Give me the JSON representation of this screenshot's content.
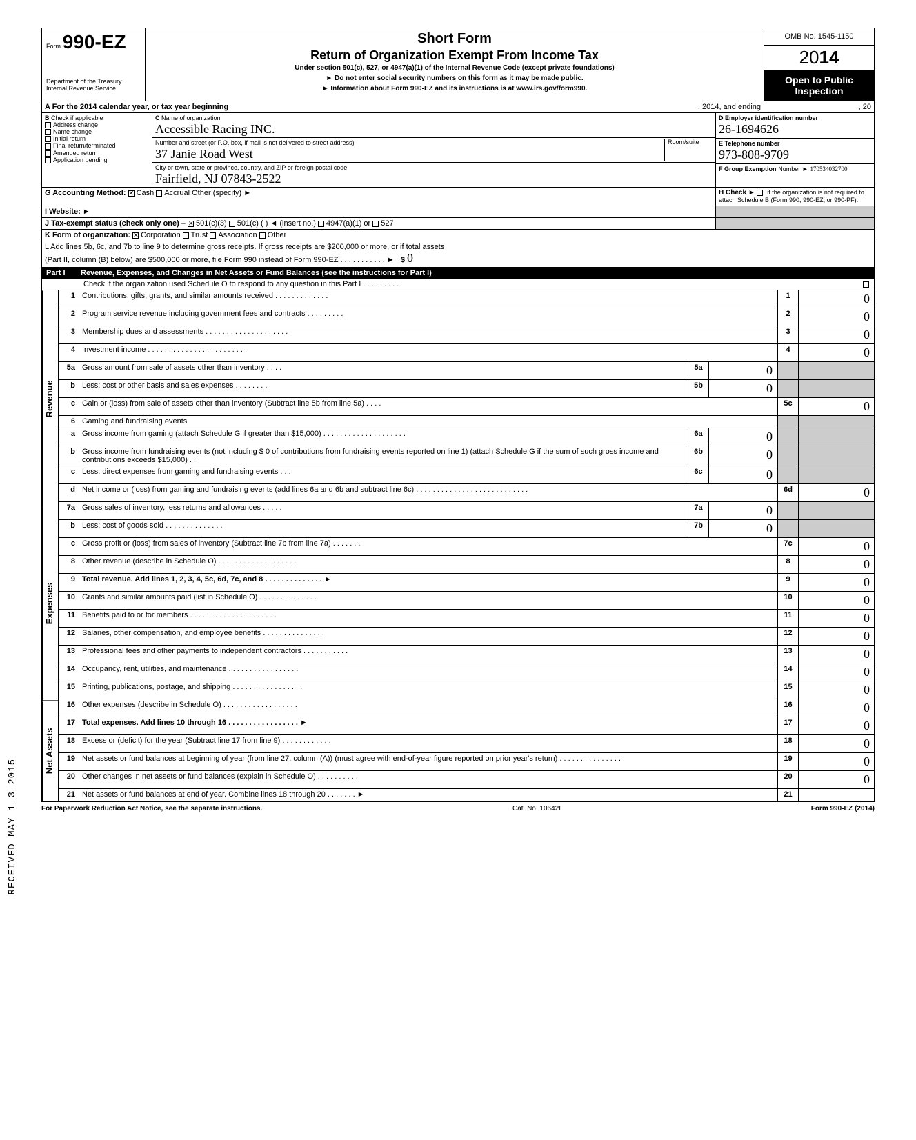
{
  "header": {
    "form_prefix": "Form",
    "form_number": "990-EZ",
    "short_form": "Short Form",
    "title": "Return of Organization Exempt From Income Tax",
    "under_section": "Under section 501(c), 527, or 4947(a)(1) of the Internal Revenue Code (except private foundations)",
    "do_not_enter": "► Do not enter social security numbers on this form as it may be made public.",
    "info_about": "► Information about Form 990-EZ and its instructions is at www.irs.gov/form990.",
    "department": "Department of the Treasury",
    "irs": "Internal Revenue Service",
    "omb": "OMB No. 1545-1150",
    "year_prefix": "20",
    "year_bold": "14",
    "open_public_1": "Open to Public",
    "open_public_2": "Inspection"
  },
  "section_a": {
    "label": "A For the 2014 calendar year, or tax year beginning",
    "ending": ", 2014, and ending",
    "end_suffix": ", 20"
  },
  "section_b": {
    "label": "B",
    "check_if": "Check if applicable",
    "items": [
      "Address change",
      "Name change",
      "Initial return",
      "Final return/terminated",
      "Amended return",
      "Application pending"
    ]
  },
  "section_c": {
    "label": "C",
    "name_label": "Name of organization",
    "name_value": "Accessible Racing INC.",
    "street_label": "Number and street (or P.O. box, if mail is not delivered to street address)",
    "room_label": "Room/suite",
    "street_value": "37 Janie Road West",
    "city_label": "City or town, state or province, country, and ZIP or foreign postal code",
    "city_value": "Fairfield, NJ  07843-2522"
  },
  "section_d": {
    "label": "D Employer identification number",
    "value": "26-1694626"
  },
  "section_e": {
    "label": "E Telephone number",
    "value": "973-808-9709"
  },
  "section_f": {
    "label": "F Group Exemption",
    "number_label": "Number ►",
    "value": "170534032700"
  },
  "section_g": {
    "label": "G Accounting Method:",
    "cash": "Cash",
    "accrual": "Accrual",
    "other": "Other (specify) ►"
  },
  "section_h": {
    "label": "H Check ►",
    "text": "if the organization is not required to attach Schedule B (Form 990, 990-EZ, or 990-PF)."
  },
  "section_i": {
    "label": "I  Website: ►"
  },
  "section_j": {
    "label": "J Tax-exempt status (check only one) –",
    "c3": "501(c)(3)",
    "c": "501(c) (",
    "insert": ") ◄ (insert no.)",
    "a1": "4947(a)(1) or",
    "s527": "527"
  },
  "section_k": {
    "label": "K Form of organization:",
    "corp": "Corporation",
    "trust": "Trust",
    "assoc": "Association",
    "other": "Other"
  },
  "section_l": {
    "line1": "L Add lines 5b, 6c, and 7b to line 9 to determine gross receipts. If gross receipts are $200,000 or more, or if total assets",
    "line2": "(Part II, column (B) below) are $500,000 or more, file Form 990 instead of Form 990-EZ .   .   .   .   .   .   .   .   .   .   .   ►",
    "dollar": "$",
    "value": "0"
  },
  "part1": {
    "label": "Part I",
    "title": "Revenue, Expenses, and Changes in Net Assets or Fund Balances (see the instructions for Part I)",
    "check": "Check if the organization used Schedule O to respond to any question in this Part I .   .   .   .   .   .   .   .   ."
  },
  "groups": {
    "revenue": "Revenue",
    "expenses": "Expenses",
    "net_assets": "Net Assets"
  },
  "lines": [
    {
      "n": "1",
      "t": "Contributions, gifts, grants, and similar amounts received .   .   .   .   .   .   .   .   .   .   .   .   .",
      "bn": "1",
      "v": "0"
    },
    {
      "n": "2",
      "t": "Program service revenue including government fees and contracts    .   .   .   .   .   .   .   .   .",
      "bn": "2",
      "v": "0"
    },
    {
      "n": "3",
      "t": "Membership dues and assessments .   .   .   .   .   .   .   .   .   .   .   .   .   .   .   .   .   .   .   .",
      "bn": "3",
      "v": "0"
    },
    {
      "n": "4",
      "t": "Investment income    .   .   .   .   .   .   .   .   .   .   .   .   .   .   .   .   .   .   .   .   .   .   .   .",
      "bn": "4",
      "v": "0"
    },
    {
      "n": "5a",
      "t": "Gross amount from sale of assets other than inventory    .   .   .   .",
      "mn": "5a",
      "mv": "0"
    },
    {
      "n": "b",
      "t": "Less: cost or other basis and sales expenses .   .   .   .   .   .   .   .",
      "mn": "5b",
      "mv": "0"
    },
    {
      "n": "c",
      "t": "Gain or (loss) from sale of assets other than inventory (Subtract line 5b from line 5a) .   .   .   .",
      "bn": "5c",
      "v": "0"
    },
    {
      "n": "6",
      "t": "Gaming and fundraising events"
    },
    {
      "n": "a",
      "t": "Gross income from gaming (attach Schedule G if greater than $15,000) .   .   .   .   .   .   .   .   .   .   .   .   .   .   .   .   .   .   .   .",
      "mn": "6a",
      "mv": "0"
    },
    {
      "n": "b",
      "t": "Gross income from fundraising events (not including  $    0               of contributions from fundraising events reported on line 1) (attach Schedule G if the sum of such gross income and contributions exceeds $15,000) .   .",
      "mn": "6b",
      "mv": "0"
    },
    {
      "n": "c",
      "t": "Less: direct expenses from gaming and fundraising events    .   .   .",
      "mn": "6c",
      "mv": "0"
    },
    {
      "n": "d",
      "t": "Net income or (loss) from gaming and fundraising events (add lines 6a and 6b and subtract line 6c)    .   .   .   .   .   .   .   .   .   .   .   .   .   .   .   .   .   .   .   .   .   .   .   .   .   .   .",
      "bn": "6d",
      "v": "0"
    },
    {
      "n": "7a",
      "t": "Gross sales of inventory, less returns and allowances   .   .   .   .   .",
      "mn": "7a",
      "mv": "0"
    },
    {
      "n": "b",
      "t": "Less: cost of goods sold   .   .   .   .   .   .   .   .   .   .   .   .   .   .",
      "mn": "7b",
      "mv": "0"
    },
    {
      "n": "c",
      "t": "Gross profit or (loss) from sales of inventory (Subtract line 7b from line 7a)   .   .   .   .   .   .   .",
      "bn": "7c",
      "v": "0"
    },
    {
      "n": "8",
      "t": "Other revenue (describe in Schedule O) .   .   .   .   .   .   .   .   .   .   .   .   .   .   .   .   .   .   .",
      "bn": "8",
      "v": "0"
    },
    {
      "n": "9",
      "t": "Total revenue. Add lines 1, 2, 3, 4, 5c, 6d, 7c, and 8    .   .   .   .   .   .   .   .   .   .   .   .   .   .   ►",
      "bn": "9",
      "v": "0",
      "bold": true
    },
    {
      "n": "10",
      "t": "Grants and similar amounts paid (list in Schedule O)    .   .   .   .   .   .   .   .   .   .   .   .   .   .",
      "bn": "10",
      "v": "0"
    },
    {
      "n": "11",
      "t": "Benefits paid to or for members .   .   .   .   .   .   .   .   .   .   .   .   .   .   .   .   .   .   .   .   .",
      "bn": "11",
      "v": "0"
    },
    {
      "n": "12",
      "t": "Salaries, other compensation, and employee benefits .   .   .   .   .   .   .   .   .   .   .   .   .   .   .",
      "bn": "12",
      "v": "0"
    },
    {
      "n": "13",
      "t": "Professional fees and other payments to independent contractors .   .   .   .   .   .   .   .   .   .   .",
      "bn": "13",
      "v": "0"
    },
    {
      "n": "14",
      "t": "Occupancy, rent, utilities, and maintenance    .   .   .   .   .   .   .   .   .   .   .   .   .   .   .   .   .",
      "bn": "14",
      "v": "0"
    },
    {
      "n": "15",
      "t": "Printing, publications, postage, and shipping .   .   .   .   .   .   .   .   .   .   .   .   .   .   .   .   .",
      "bn": "15",
      "v": "0"
    },
    {
      "n": "16",
      "t": "Other expenses (describe in Schedule O)    .   .   .   .   .   .   .   .   .   .   .   .   .   .   .   .   .   .",
      "bn": "16",
      "v": "0"
    },
    {
      "n": "17",
      "t": "Total expenses. Add lines 10 through 16   .   .   .   .   .   .   .   .   .   .   .   .   .   .   .   .   .   ►",
      "bn": "17",
      "v": "0",
      "bold": true
    },
    {
      "n": "18",
      "t": "Excess or (deficit) for the year (Subtract line 17 from line 9)    .   .   .   .   .   .   .   .   .   .   .   .",
      "bn": "18",
      "v": "0"
    },
    {
      "n": "19",
      "t": "Net assets or fund balances at beginning of year (from line 27, column (A)) (must agree with end-of-year figure reported on prior year's return)    .   .   .   .   .   .   .   .   .   .   .   .   .   .   .",
      "bn": "19",
      "v": "0"
    },
    {
      "n": "20",
      "t": "Other changes in net assets or fund balances (explain in Schedule O) .   .   .   .   .   .   .   .   .   .",
      "bn": "20",
      "v": "0"
    },
    {
      "n": "21",
      "t": "Net assets or fund balances at end of year. Combine lines 18 through 20   .   .   .   .   .   .   .   ►",
      "bn": "21",
      "v": ""
    }
  ],
  "footer": {
    "left": "For Paperwork Reduction Act Notice, see the separate instructions.",
    "mid": "Cat. No. 10642I",
    "right": "Form 990-EZ (2014)"
  },
  "side_stamp": "RECEIVED MAY 1 3 2015",
  "colors": {
    "black": "#000000",
    "white": "#ffffff",
    "gray_fill": "#cccccc"
  }
}
